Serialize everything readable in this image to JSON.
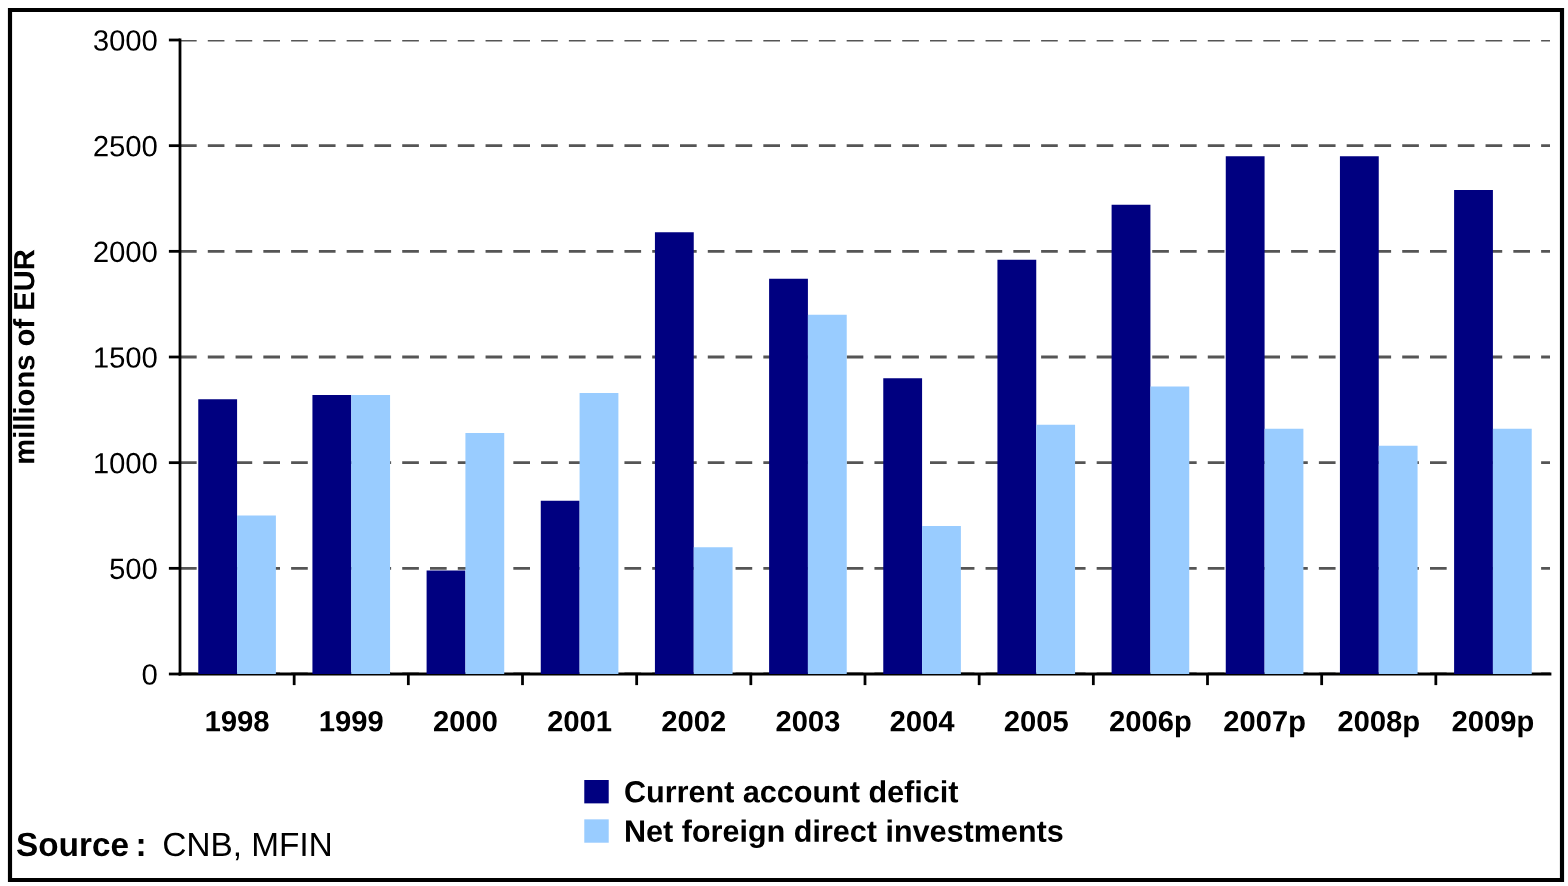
{
  "chart_data": {
    "type": "bar",
    "ylabel": "millions of EUR",
    "categories": [
      "1998",
      "1999",
      "2000",
      "2001",
      "2002",
      "2003",
      "2004",
      "2005",
      "2006p",
      "2007p",
      "2008p",
      "2009p"
    ],
    "series": [
      {
        "name": "Current account deficit",
        "color": "#000080",
        "values": [
          1300,
          1320,
          490,
          820,
          2090,
          1870,
          1400,
          1960,
          2220,
          2450,
          2450,
          2290
        ]
      },
      {
        "name": "Net foreign direct investments",
        "color": "#99ccff",
        "values": [
          750,
          1320,
          1140,
          1330,
          600,
          1700,
          700,
          1180,
          1360,
          1160,
          1080,
          1160
        ]
      }
    ],
    "ylim": [
      0,
      3000
    ],
    "yticks": [
      0,
      500,
      1000,
      1500,
      2000,
      2500,
      3000
    ],
    "grid": "y",
    "legend": "bottom",
    "annotations": [
      "Source: CNB, MFIN"
    ]
  }
}
